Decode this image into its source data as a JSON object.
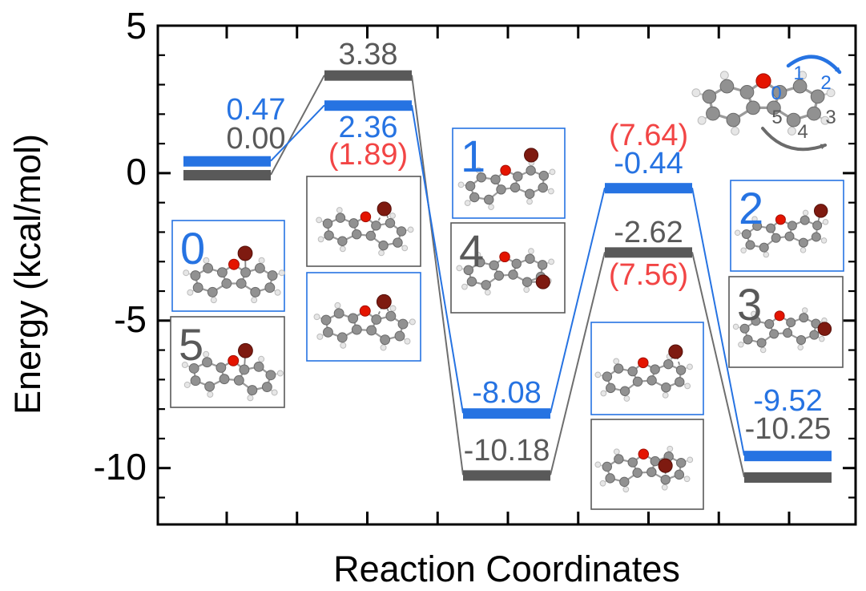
{
  "figure": {
    "xlabel": "Reaction Coordinates",
    "ylabel": "Energy (kcal/mol)",
    "y_ticks": [
      "5",
      "0",
      "-5",
      "-10"
    ],
    "colors": {
      "blue": "#2673e2",
      "gray": "#595959",
      "red": "#f24545",
      "axis": "#000000",
      "background": "#ffffff"
    }
  },
  "chart_data": {
    "type": "line",
    "subtype": "reaction-energy-profile",
    "title": "",
    "xlabel": "Reaction Coordinates",
    "ylabel": "Energy (kcal/mol)",
    "ylim": [
      -12,
      5
    ],
    "yticks": [
      5,
      0,
      -5,
      -10
    ],
    "n_stages": 5,
    "series": [
      {
        "name": "blue-pathway",
        "color": "#2673e2",
        "values": [
          0.47,
          2.36,
          -8.08,
          -0.44,
          -9.52
        ]
      },
      {
        "name": "gray-pathway",
        "color": "#595959",
        "values": [
          0.0,
          3.38,
          -10.18,
          -2.62,
          -10.25
        ]
      }
    ],
    "red_annotations": [
      {
        "stage_index": 1,
        "text": "(1.89)"
      },
      {
        "stage_index": 3,
        "text": "(7.64)"
      },
      {
        "stage_index": 3,
        "text": "(7.56)"
      }
    ],
    "grid": false,
    "legend": false
  },
  "molecule_boxes": [
    {
      "label": "0",
      "border": "blue"
    },
    {
      "label": "5",
      "border": "gray"
    },
    {
      "label": "",
      "border": "gray"
    },
    {
      "label": "",
      "border": "blue"
    },
    {
      "label": "1",
      "border": "blue"
    },
    {
      "label": "4",
      "border": "gray"
    },
    {
      "label": "",
      "border": "blue"
    },
    {
      "label": "",
      "border": "gray"
    },
    {
      "label": "2",
      "border": "blue"
    },
    {
      "label": "3",
      "border": "gray"
    }
  ],
  "scheme": {
    "site_labels": [
      {
        "text": "0",
        "color": "blue"
      },
      {
        "text": "1",
        "color": "blue"
      },
      {
        "text": "2",
        "color": "blue"
      },
      {
        "text": "3",
        "color": "gray"
      },
      {
        "text": "4",
        "color": "gray"
      },
      {
        "text": "5",
        "color": "gray"
      }
    ]
  },
  "atom_colors": {
    "carbon": "#919191",
    "hydrogen": "#e6e6e6",
    "oxygen": "#e41400",
    "bromine": "#7e1a10"
  }
}
